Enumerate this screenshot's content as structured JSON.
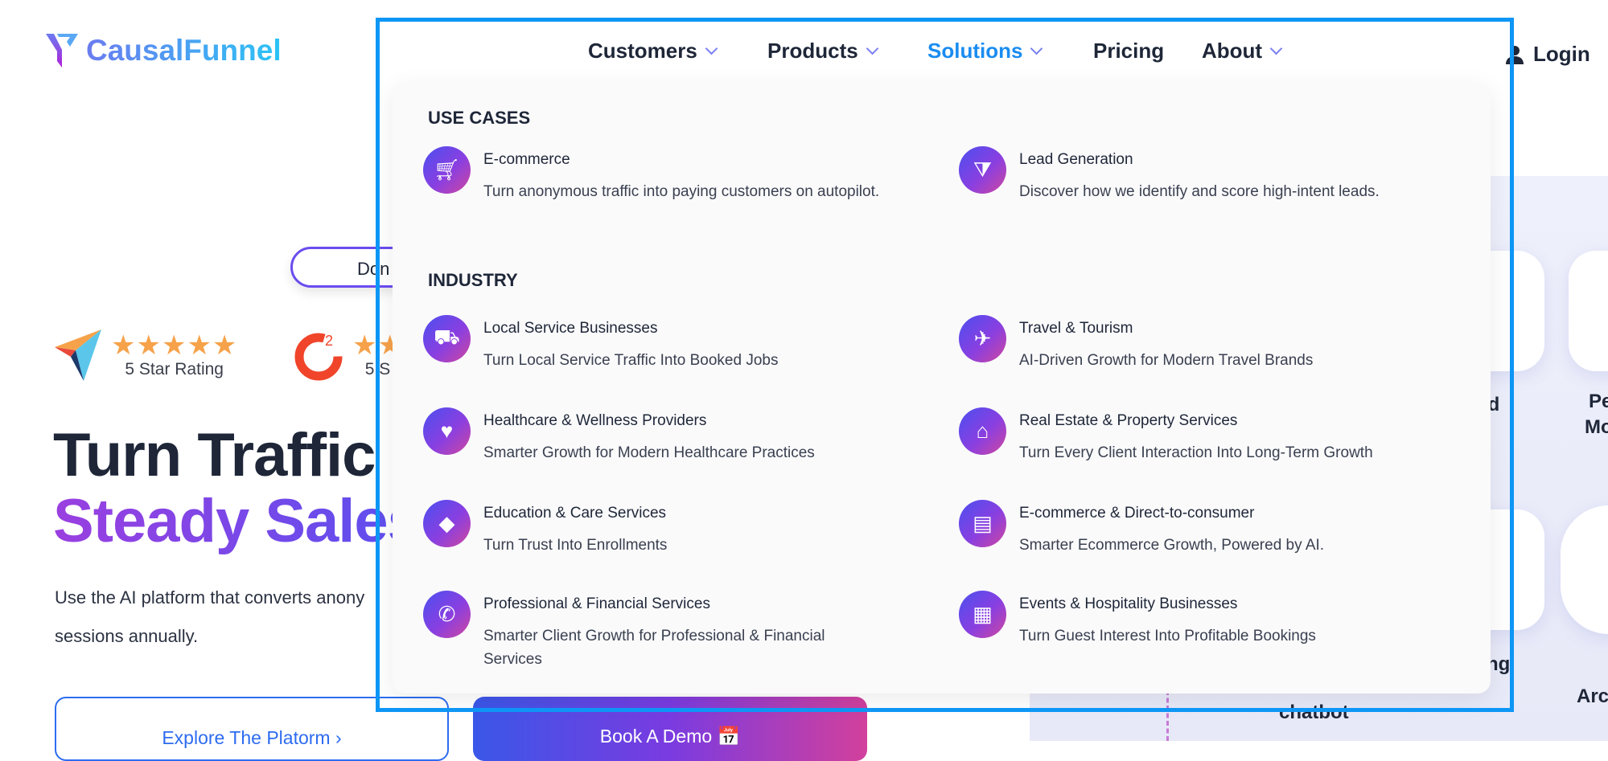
{
  "brand": {
    "name": "CausalFunnel"
  },
  "nav": {
    "items": [
      {
        "label": "Customers",
        "dropdown": true
      },
      {
        "label": "Products",
        "dropdown": true
      },
      {
        "label": "Solutions",
        "dropdown": true,
        "active": true
      },
      {
        "label": "Pricing",
        "dropdown": false
      },
      {
        "label": "About",
        "dropdown": true
      }
    ],
    "login": "Login"
  },
  "hero": {
    "pill": "Don",
    "ratings": [
      {
        "label": "5 Star Rating",
        "stars": 5
      },
      {
        "label": "5 S",
        "stars": 5
      }
    ],
    "title_line1": "Turn Traffic",
    "title_line2": "Steady Sales",
    "paragraph_line1": "Use the AI platform that converts anony",
    "paragraph_line2": "sessions annually.",
    "explore_button": "Explore The Platorm",
    "demo_button": "Book A Demo"
  },
  "dropdown": {
    "use_cases_heading": "USE CASES",
    "use_cases": [
      {
        "title": "E-commerce",
        "desc": "Turn anonymous traffic into paying customers on autopilot.",
        "icon": "cart-icon"
      },
      {
        "title": "Lead Generation",
        "desc": "Discover how we identify and score high-intent leads.",
        "icon": "funnel-dollar-icon"
      }
    ],
    "industry_heading": "INDUSTRY",
    "industries": [
      {
        "title": "Local Service Businesses",
        "desc": "Turn Local Service Traffic Into Booked Jobs",
        "icon": "truck-icon"
      },
      {
        "title": "Travel & Tourism",
        "desc": "AI-Driven Growth for Modern Travel Brands",
        "icon": "plane-icon"
      },
      {
        "title": "Healthcare & Wellness Providers",
        "desc": "Smarter Growth for Modern Healthcare Practices",
        "icon": "heart-check-icon"
      },
      {
        "title": "Real Estate & Property Services",
        "desc": "Turn Every Client Interaction Into Long-Term Growth",
        "icon": "building-icon"
      },
      {
        "title": "Education & Care Services",
        "desc": "Turn Trust Into Enrollments",
        "icon": "graduation-cap-icon"
      },
      {
        "title": "E-commerce & Direct-to-consumer",
        "desc": "Smarter Ecommerce Growth, Powered by AI.",
        "icon": "store-icon"
      },
      {
        "title": "Professional & Financial Services",
        "desc": "Smarter Client Growth for Professional & Financial Services",
        "icon": "phone-dollar-icon"
      },
      {
        "title": "Events & Hospitality Businesses",
        "desc": "Turn Guest Interest Into Profitable Bookings",
        "icon": "calendar-icon"
      }
    ]
  },
  "background_labels": {
    "a": "nd",
    "b": "Pe",
    "c": "Mo",
    "d": "sting",
    "e": "chatbot",
    "f": "Arc"
  },
  "colors": {
    "accent": "#1a8cf0",
    "frame": "#0d96f5",
    "gradient_start": "#4b4ff0",
    "gradient_end": "#d0479e"
  }
}
